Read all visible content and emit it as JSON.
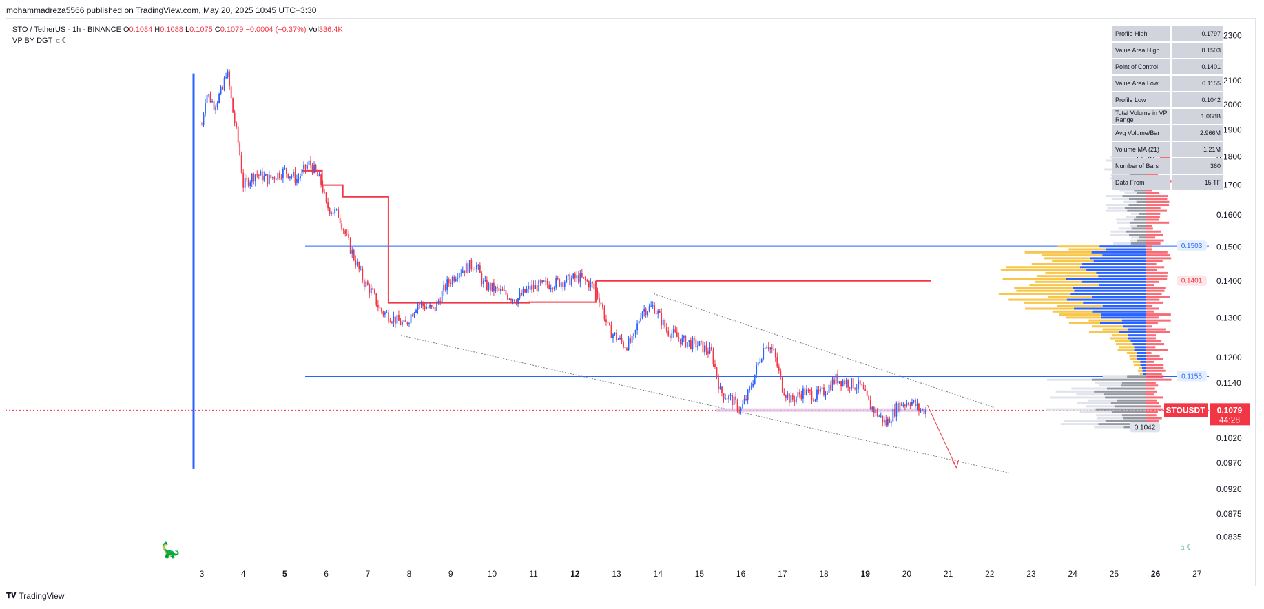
{
  "header": {
    "publisher_line": "mohammadreza5566 published on TradingView.com, May 20, 2025 10:45 UTC+3:30"
  },
  "legend": {
    "symbol": "STO / TetherUS · 1h · BINANCE",
    "open_label": "O",
    "open": "0.1084",
    "high_label": "H",
    "high": "0.1088",
    "low_label": "L",
    "low": "0.1075",
    "close_label": "C",
    "close": "0.1079",
    "change": "−0.0004 (−0.37%)",
    "vol_label": "Vol",
    "volume": "336.4K",
    "indicator": "VP BY DGT ☼☾"
  },
  "stats": [
    {
      "label": "Profile High",
      "value": "0.1797"
    },
    {
      "label": "Value Area High",
      "value": "0.1503"
    },
    {
      "label": "Point of Control",
      "value": "0.1401"
    },
    {
      "label": "Value Area Low",
      "value": "0.1155"
    },
    {
      "label": "Profile Low",
      "value": "0.1042"
    },
    {
      "label": "Total Volume in VP Range",
      "value": "1.068B"
    },
    {
      "label": "Avg Volume/Bar",
      "value": "2.966M"
    },
    {
      "label": "Volume MA (21)",
      "value": "1.21M"
    },
    {
      "label": "Number of Bars",
      "value": "360"
    },
    {
      "label": "Data From",
      "value": "15 TF"
    }
  ],
  "footer": {
    "brand": "TradingView"
  },
  "icons": {
    "dino": "dinosaur-icon",
    "theme": "sun-moon-icon"
  },
  "colors": {
    "up": "#2962ff",
    "down": "#f23645",
    "poc": "#f23645",
    "va_line": "#2962ff",
    "vp_yellow": "#f7c64a",
    "vp_blue": "#2962ff",
    "vp_gray": "#b2b5be",
    "vp_red": "#f7525f"
  },
  "chart_data": {
    "type": "candlestick",
    "x_tick_labels": [
      "3",
      "4",
      "5",
      "6",
      "7",
      "8",
      "9",
      "10",
      "11",
      "12",
      "13",
      "14",
      "15",
      "16",
      "17",
      "18",
      "19",
      "20",
      "21",
      "22",
      "23",
      "24",
      "25",
      "26",
      "27"
    ],
    "y_tick_labels": [
      "0.2300",
      "0.2100",
      "0.2000",
      "0.1900",
      "0.1800",
      "0.1700",
      "0.1600",
      "0.1500",
      "0.1400",
      "0.1300",
      "0.1200",
      "0.1140",
      "0.1020",
      "0.0970",
      "0.0920",
      "0.0875",
      "0.0835"
    ],
    "price_scale": "log",
    "y_range": [
      0.0815,
      0.235
    ],
    "current_price": {
      "symbol": "STOUSDT",
      "price": "0.1079",
      "countdown": "44:28"
    },
    "value_area_high": 0.1503,
    "point_of_control": 0.1401,
    "value_area_low": 0.1155,
    "profile_high": 0.1797,
    "profile_low": 0.1042,
    "level_labels": {
      "vah": "0.1503",
      "poc": "0.1401",
      "val": "0.1155",
      "high": "0.1797",
      "low": "0.1042"
    },
    "price_path": [
      [
        3.0,
        0.192
      ],
      [
        3.1,
        0.205
      ],
      [
        3.3,
        0.2
      ],
      [
        3.5,
        0.206
      ],
      [
        3.6,
        0.215
      ],
      [
        3.75,
        0.197
      ],
      [
        3.9,
        0.183
      ],
      [
        4.0,
        0.17
      ],
      [
        4.3,
        0.174
      ],
      [
        4.6,
        0.172
      ],
      [
        5.0,
        0.175
      ],
      [
        5.3,
        0.172
      ],
      [
        5.6,
        0.178
      ],
      [
        5.9,
        0.17
      ],
      [
        6.0,
        0.163
      ],
      [
        6.3,
        0.16
      ],
      [
        6.6,
        0.149
      ],
      [
        6.9,
        0.14
      ],
      [
        7.1,
        0.137
      ],
      [
        7.3,
        0.132
      ],
      [
        7.6,
        0.13
      ],
      [
        7.9,
        0.128
      ],
      [
        8.2,
        0.134
      ],
      [
        8.6,
        0.132
      ],
      [
        8.9,
        0.139
      ],
      [
        9.2,
        0.143
      ],
      [
        9.6,
        0.145
      ],
      [
        9.8,
        0.139
      ],
      [
        10.2,
        0.137
      ],
      [
        10.6,
        0.135
      ],
      [
        10.9,
        0.138
      ],
      [
        11.3,
        0.139
      ],
      [
        11.7,
        0.14
      ],
      [
        12.1,
        0.141
      ],
      [
        12.4,
        0.139
      ],
      [
        12.6,
        0.135
      ],
      [
        12.8,
        0.127
      ],
      [
        13.0,
        0.125
      ],
      [
        13.2,
        0.123
      ],
      [
        13.4,
        0.124
      ],
      [
        13.6,
        0.132
      ],
      [
        13.9,
        0.133
      ],
      [
        14.2,
        0.127
      ],
      [
        14.6,
        0.124
      ],
      [
        15.0,
        0.123
      ],
      [
        15.3,
        0.121
      ],
      [
        15.5,
        0.112
      ],
      [
        15.8,
        0.11
      ],
      [
        16.0,
        0.108
      ],
      [
        16.2,
        0.112
      ],
      [
        16.4,
        0.118
      ],
      [
        16.6,
        0.124
      ],
      [
        16.8,
        0.121
      ],
      [
        17.0,
        0.113
      ],
      [
        17.2,
        0.11
      ],
      [
        17.5,
        0.112
      ],
      [
        17.8,
        0.111
      ],
      [
        18.0,
        0.112
      ],
      [
        18.3,
        0.115
      ],
      [
        18.6,
        0.114
      ],
      [
        18.9,
        0.113
      ],
      [
        19.1,
        0.109
      ],
      [
        19.3,
        0.107
      ],
      [
        19.5,
        0.105
      ],
      [
        19.8,
        0.109
      ],
      [
        20.1,
        0.11
      ],
      [
        20.3,
        0.108
      ],
      [
        20.5,
        0.1079
      ]
    ]
  }
}
